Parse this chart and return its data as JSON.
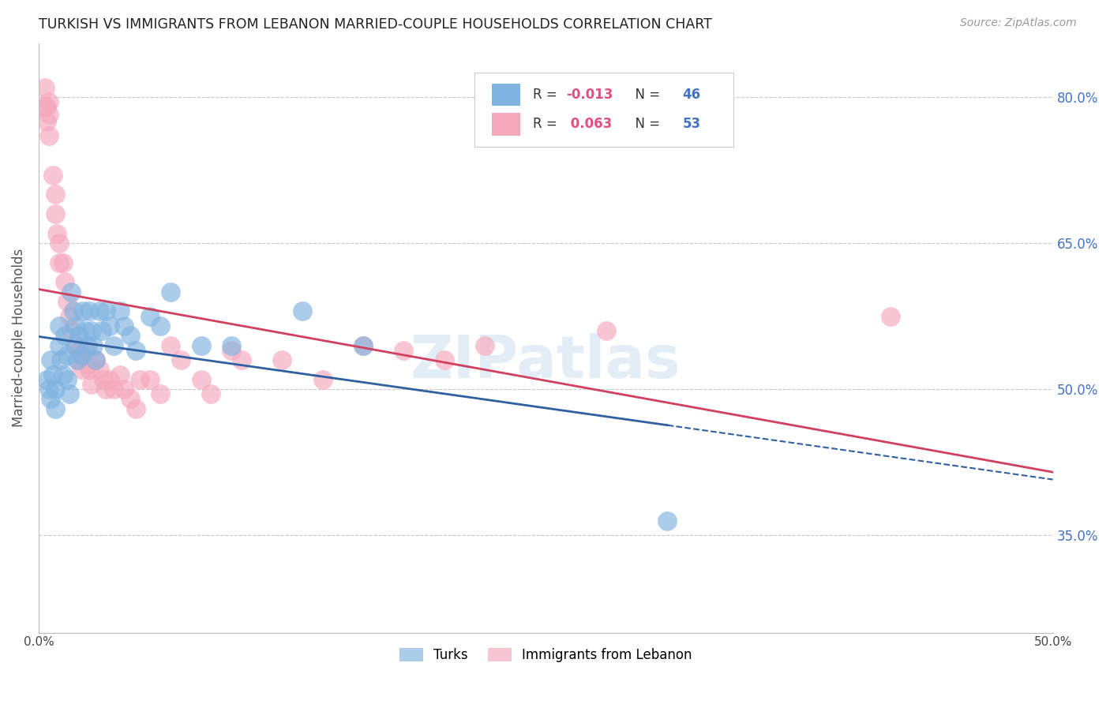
{
  "title": "TURKISH VS IMMIGRANTS FROM LEBANON MARRIED-COUPLE HOUSEHOLDS CORRELATION CHART",
  "source": "Source: ZipAtlas.com",
  "ylabel": "Married-couple Households",
  "xlim": [
    0.0,
    0.5
  ],
  "ylim": [
    0.25,
    0.855
  ],
  "yticks": [
    0.35,
    0.5,
    0.65,
    0.8
  ],
  "ytick_labels": [
    "35.0%",
    "50.0%",
    "65.0%",
    "80.0%"
  ],
  "xticks": [
    0.0,
    0.1,
    0.2,
    0.3,
    0.4,
    0.5
  ],
  "xtick_labels": [
    "0.0%",
    "",
    "",
    "",
    "",
    "50.0%"
  ],
  "watermark": "ZIPatlas",
  "legend_blue_label": "R = -0.013   N = 46",
  "legend_pink_label": "R =  0.063   N = 53",
  "blue_color": "#7fb3e0",
  "pink_color": "#f5a8bc",
  "trendline_blue_color": "#3060a0",
  "trendline_pink_color": "#d04060",
  "grid_color": "#c8c8c8",
  "background_color": "#ffffff",
  "turks_x": [
    0.004,
    0.005,
    0.006,
    0.006,
    0.007,
    0.008,
    0.008,
    0.01,
    0.01,
    0.011,
    0.012,
    0.013,
    0.014,
    0.014,
    0.015,
    0.016,
    0.017,
    0.018,
    0.018,
    0.019,
    0.02,
    0.021,
    0.022,
    0.023,
    0.024,
    0.025,
    0.026,
    0.027,
    0.028,
    0.03,
    0.031,
    0.033,
    0.035,
    0.037,
    0.04,
    0.042,
    0.045,
    0.048,
    0.055,
    0.06,
    0.065,
    0.08,
    0.095,
    0.13,
    0.16,
    0.31
  ],
  "turks_y": [
    0.51,
    0.5,
    0.49,
    0.53,
    0.515,
    0.5,
    0.48,
    0.565,
    0.545,
    0.53,
    0.515,
    0.555,
    0.535,
    0.51,
    0.495,
    0.6,
    0.58,
    0.565,
    0.545,
    0.53,
    0.555,
    0.535,
    0.58,
    0.56,
    0.545,
    0.58,
    0.56,
    0.545,
    0.53,
    0.58,
    0.56,
    0.58,
    0.565,
    0.545,
    0.58,
    0.565,
    0.555,
    0.54,
    0.575,
    0.565,
    0.6,
    0.545,
    0.545,
    0.58,
    0.545,
    0.365
  ],
  "lebanon_x": [
    0.003,
    0.003,
    0.004,
    0.004,
    0.005,
    0.005,
    0.005,
    0.007,
    0.008,
    0.008,
    0.009,
    0.01,
    0.01,
    0.012,
    0.013,
    0.014,
    0.015,
    0.016,
    0.018,
    0.019,
    0.02,
    0.021,
    0.023,
    0.024,
    0.025,
    0.026,
    0.028,
    0.03,
    0.032,
    0.033,
    0.035,
    0.037,
    0.04,
    0.042,
    0.045,
    0.048,
    0.05,
    0.055,
    0.06,
    0.065,
    0.07,
    0.08,
    0.085,
    0.095,
    0.1,
    0.12,
    0.14,
    0.16,
    0.18,
    0.2,
    0.22,
    0.28,
    0.42
  ],
  "lebanon_y": [
    0.79,
    0.81,
    0.79,
    0.775,
    0.795,
    0.782,
    0.76,
    0.72,
    0.7,
    0.68,
    0.66,
    0.65,
    0.63,
    0.63,
    0.61,
    0.59,
    0.575,
    0.56,
    0.545,
    0.53,
    0.54,
    0.52,
    0.54,
    0.525,
    0.52,
    0.505,
    0.53,
    0.52,
    0.51,
    0.5,
    0.51,
    0.5,
    0.515,
    0.5,
    0.49,
    0.48,
    0.51,
    0.51,
    0.495,
    0.545,
    0.53,
    0.51,
    0.495,
    0.54,
    0.53,
    0.53,
    0.51,
    0.545,
    0.54,
    0.53,
    0.545,
    0.56,
    0.575
  ],
  "trendline_x_start": 0.0,
  "trendline_x_solid_end": 0.31,
  "trendline_x_end": 0.5
}
